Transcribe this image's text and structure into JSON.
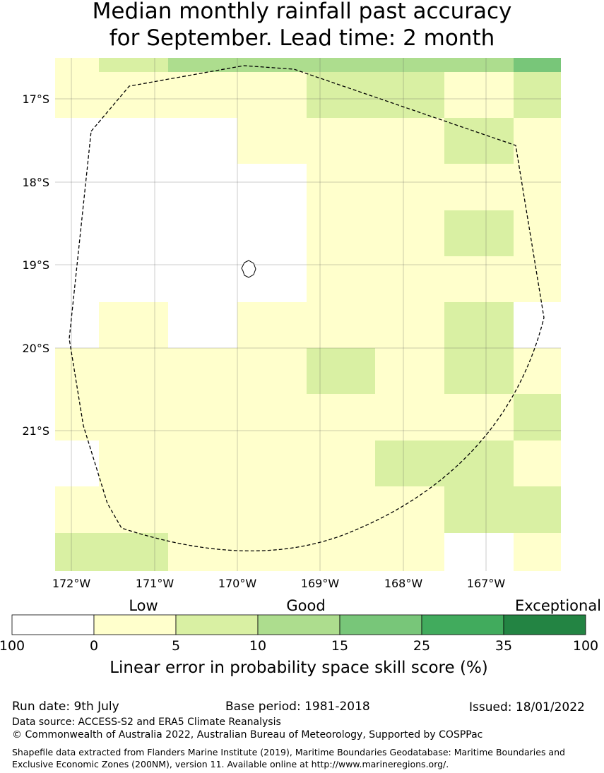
{
  "title_line1": "Median monthly rainfall past accuracy",
  "title_line2": "for September. Lead time: 2 month",
  "chart_data": {
    "type": "heatmap",
    "x_ticks": [
      "172°W",
      "171°W",
      "170°W",
      "169°W",
      "168°W",
      "167°W"
    ],
    "y_ticks": [
      "17°S",
      "18°S",
      "19°S",
      "20°S",
      "21°S"
    ],
    "grid": true,
    "colorbar": {
      "title": "Linear error in probability space skill score (%)",
      "category_labels": [
        "Low",
        "Good",
        "Exceptional"
      ],
      "boundaries": [
        "100",
        "0",
        "5",
        "10",
        "15",
        "25",
        "35",
        "100"
      ],
      "colors": [
        "#ffffff",
        "#ffffcc",
        "#d9f0a3",
        "#addd8e",
        "#78c679",
        "#41ab5d",
        "#238443"
      ]
    },
    "cell_levels_rows_top_to_bottom": [
      [
        1,
        2,
        2,
        3,
        3,
        3,
        3,
        3,
        3,
        3,
        3,
        4
      ],
      [
        1,
        1,
        1,
        1,
        1,
        1,
        2,
        2,
        2,
        1,
        1,
        2
      ],
      [
        0,
        0,
        0,
        0,
        1,
        1,
        1,
        1,
        1,
        2,
        2,
        1
      ],
      [
        0,
        0,
        0,
        0,
        0,
        0,
        1,
        1,
        1,
        1,
        1,
        1
      ],
      [
        0,
        0,
        0,
        0,
        0,
        0,
        1,
        1,
        1,
        2,
        2,
        1
      ],
      [
        0,
        0,
        0,
        0,
        0,
        0,
        1,
        1,
        1,
        1,
        1,
        1
      ],
      [
        0,
        1,
        1,
        0,
        1,
        1,
        1,
        1,
        1,
        2,
        2,
        0
      ],
      [
        1,
        1,
        1,
        1,
        1,
        1,
        2,
        2,
        1,
        2,
        2,
        1
      ],
      [
        1,
        1,
        1,
        1,
        1,
        1,
        1,
        1,
        1,
        1,
        1,
        2
      ],
      [
        0,
        1,
        1,
        1,
        1,
        1,
        1,
        1,
        2,
        2,
        2,
        1
      ],
      [
        1,
        1,
        1,
        1,
        1,
        1,
        1,
        1,
        1,
        2,
        2,
        2
      ],
      [
        2,
        2,
        2,
        1,
        1,
        1,
        1,
        1,
        1,
        0,
        0,
        1
      ]
    ]
  },
  "footer": {
    "run_date": "Run date: 9th July",
    "base_period": "Base period: 1981-2018",
    "issued": "Issued: 18/01/2022",
    "data_source": "Data source: ACCESS-S2 and ERA5 Climate Reanalysis",
    "copyright": "© Commonwealth of Australia 2022, Australian Bureau of Meteorology, Supported by COSPPac",
    "shapefile": "Shapefile data extracted from Flanders Marine Institute (2019), Maritime Boundaries Geodatabase: Maritime Boundaries and Exclusive Economic Zones (200NM), version 11. Available online at http://www.marineregions.org/."
  }
}
